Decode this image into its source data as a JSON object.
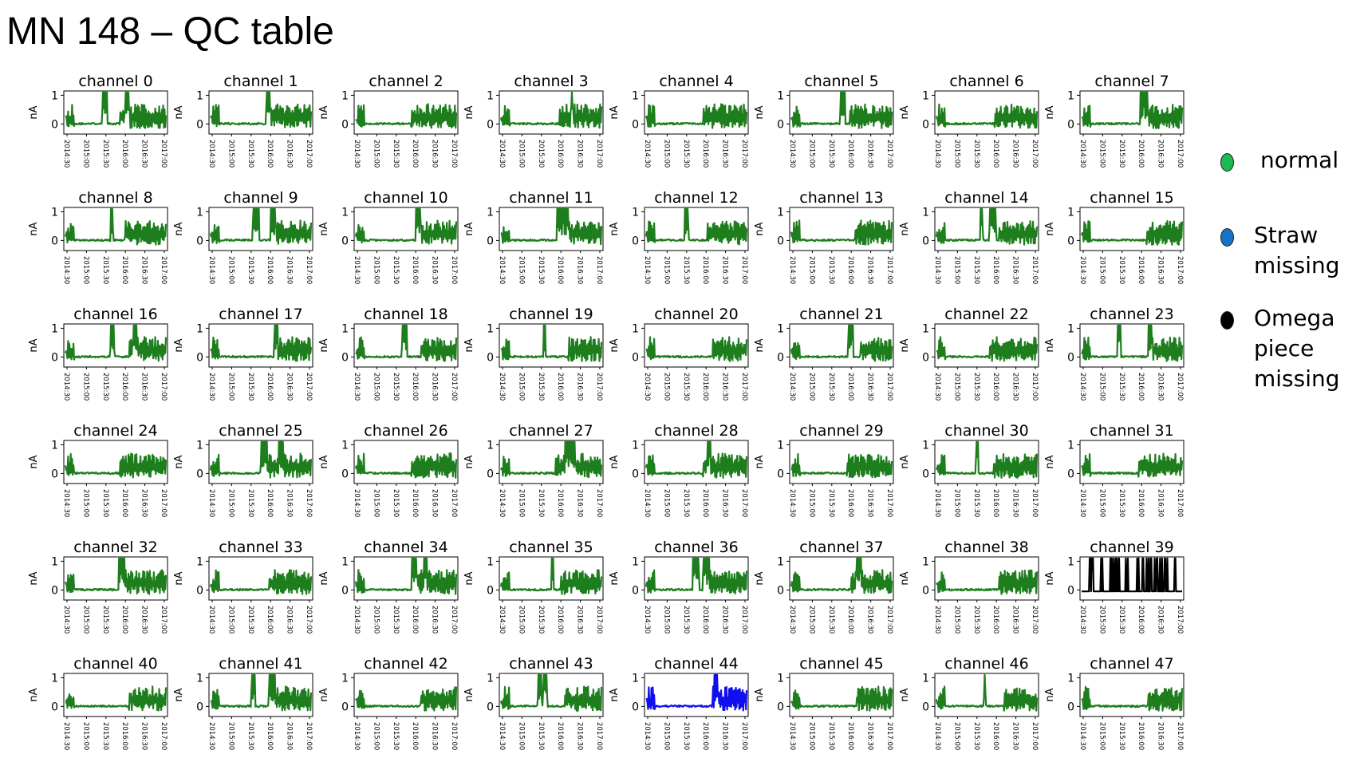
{
  "title": "MN 148 – QC table",
  "legend": {
    "normal": {
      "label": "normal",
      "color": "#1db954"
    },
    "straw": {
      "label": "Straw\nmissing",
      "color": "#1674c8"
    },
    "omega": {
      "label": "Omega\npiece\nmissing",
      "color": "#000000"
    }
  },
  "chart_data": {
    "type": "line",
    "ylabel": "nA",
    "ylim": [
      -0.35,
      1.15
    ],
    "yticks": [
      "1",
      "0"
    ],
    "xticks": [
      "2014:30",
      "2015:00",
      "2015:30",
      "2016:00",
      "2016:30",
      "2017:00"
    ],
    "status_colors": {
      "normal": "#1e7e1e",
      "straw_missing": "#1010ee",
      "omega_missing": "#000000"
    },
    "panels": [
      {
        "name": "channel 0",
        "status": "normal"
      },
      {
        "name": "channel 1",
        "status": "normal"
      },
      {
        "name": "channel 2",
        "status": "normal"
      },
      {
        "name": "channel 3",
        "status": "normal"
      },
      {
        "name": "channel 4",
        "status": "normal"
      },
      {
        "name": "channel 5",
        "status": "normal"
      },
      {
        "name": "channel 6",
        "status": "normal"
      },
      {
        "name": "channel 7",
        "status": "normal"
      },
      {
        "name": "channel 8",
        "status": "normal"
      },
      {
        "name": "channel 9",
        "status": "normal"
      },
      {
        "name": "channel 10",
        "status": "normal"
      },
      {
        "name": "channel 11",
        "status": "normal"
      },
      {
        "name": "channel 12",
        "status": "normal"
      },
      {
        "name": "channel 13",
        "status": "normal"
      },
      {
        "name": "channel 14",
        "status": "normal"
      },
      {
        "name": "channel 15",
        "status": "normal"
      },
      {
        "name": "channel 16",
        "status": "normal"
      },
      {
        "name": "channel 17",
        "status": "normal"
      },
      {
        "name": "channel 18",
        "status": "normal"
      },
      {
        "name": "channel 19",
        "status": "normal"
      },
      {
        "name": "channel 20",
        "status": "normal"
      },
      {
        "name": "channel 21",
        "status": "normal"
      },
      {
        "name": "channel 22",
        "status": "normal"
      },
      {
        "name": "channel 23",
        "status": "normal"
      },
      {
        "name": "channel 24",
        "status": "normal"
      },
      {
        "name": "channel 25",
        "status": "normal"
      },
      {
        "name": "channel 26",
        "status": "normal"
      },
      {
        "name": "channel 27",
        "status": "normal"
      },
      {
        "name": "channel 28",
        "status": "normal"
      },
      {
        "name": "channel 29",
        "status": "normal"
      },
      {
        "name": "channel 30",
        "status": "normal"
      },
      {
        "name": "channel 31",
        "status": "normal"
      },
      {
        "name": "channel 32",
        "status": "normal"
      },
      {
        "name": "channel 33",
        "status": "normal"
      },
      {
        "name": "channel 34",
        "status": "normal"
      },
      {
        "name": "channel 35",
        "status": "normal"
      },
      {
        "name": "channel 36",
        "status": "normal"
      },
      {
        "name": "channel 37",
        "status": "normal"
      },
      {
        "name": "channel 38",
        "status": "normal"
      },
      {
        "name": "channel 39",
        "status": "omega_missing"
      },
      {
        "name": "channel 40",
        "status": "normal"
      },
      {
        "name": "channel 41",
        "status": "normal"
      },
      {
        "name": "channel 42",
        "status": "normal"
      },
      {
        "name": "channel 43",
        "status": "normal"
      },
      {
        "name": "channel 44",
        "status": "straw_missing"
      },
      {
        "name": "channel 45",
        "status": "normal"
      },
      {
        "name": "channel 46",
        "status": "normal"
      },
      {
        "name": "channel 47",
        "status": "normal"
      }
    ]
  }
}
